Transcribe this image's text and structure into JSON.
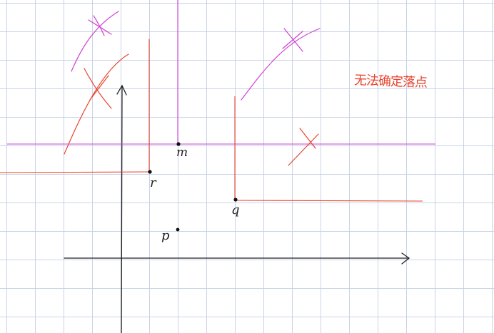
{
  "canvas": {
    "background": "#ffffff",
    "grid_color": "#c9d3e6"
  },
  "colors": {
    "red": "#e8452f",
    "magenta": "#d23fd6",
    "axis": "#222222",
    "point": "#111111"
  },
  "labels": {
    "m": "m",
    "r": "r",
    "q": "q",
    "p": "p",
    "note": "无法确定落点"
  }
}
